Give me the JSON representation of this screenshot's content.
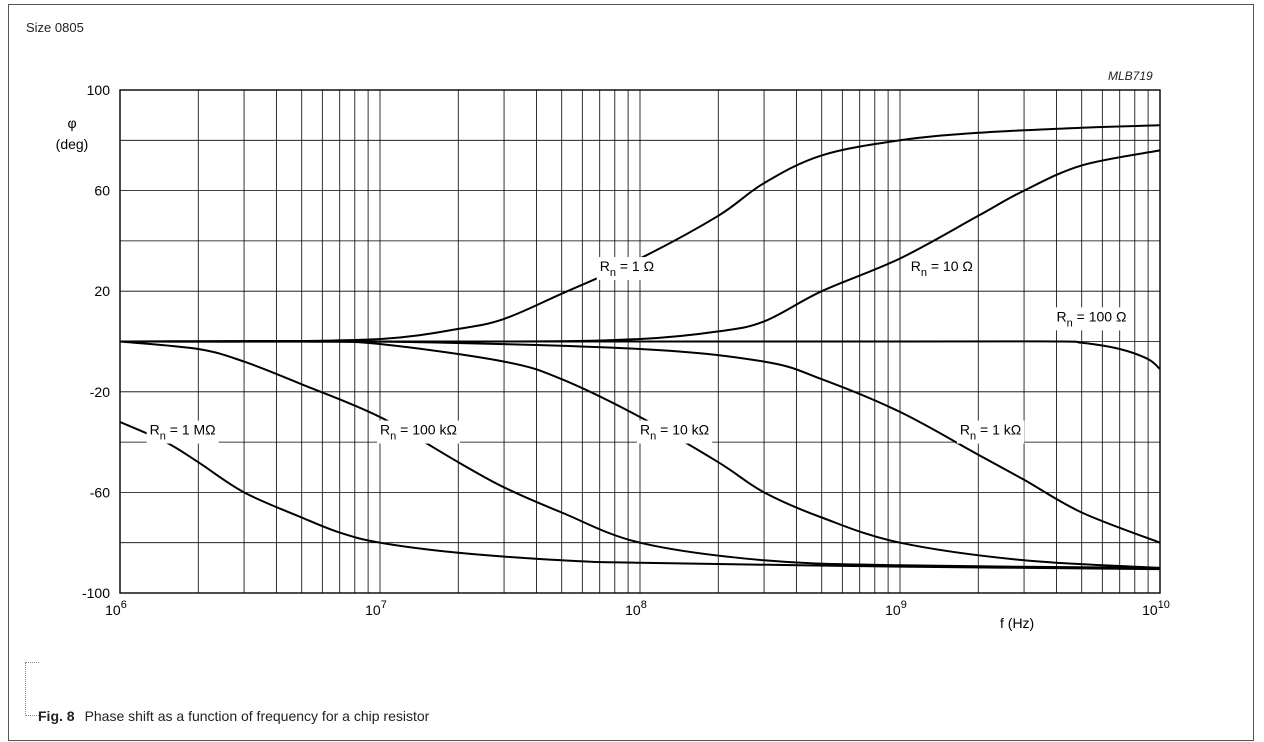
{
  "header": {
    "size_label": "Size 0805",
    "code": "MLB719"
  },
  "caption": {
    "fig": "Fig. 8",
    "text": "Phase shift as a function of frequency for a chip resistor"
  },
  "chart_data": {
    "type": "line",
    "xlabel": "f  (Hz)",
    "ylabel_symbol": "φ",
    "ylabel_unit": "(deg)",
    "x_scale": "log",
    "xlim": [
      1000000,
      10000000000
    ],
    "ylim": [
      -100,
      100
    ],
    "x_ticks": [
      {
        "value": 1000000,
        "base": "10",
        "exp": "6"
      },
      {
        "value": 10000000,
        "base": "10",
        "exp": "7"
      },
      {
        "value": 100000000,
        "base": "10",
        "exp": "8"
      },
      {
        "value": 1000000000,
        "base": "10",
        "exp": "9"
      },
      {
        "value": 10000000000,
        "base": "10",
        "exp": "10"
      }
    ],
    "y_ticks": [
      {
        "value": 100,
        "label": "100"
      },
      {
        "value": 60,
        "label": "60"
      },
      {
        "value": 20,
        "label": "20"
      },
      {
        "value": -20,
        "label": "-20"
      },
      {
        "value": -60,
        "label": "-60"
      },
      {
        "value": -100,
        "label": "-100"
      }
    ],
    "y_grid_step": 20,
    "grid": true,
    "series": [
      {
        "name": "Rn = 1 Ω",
        "label_main": "R",
        "label_sub": "n",
        "label_rest": " = 1 Ω",
        "label_at": [
          70000000,
          28
        ],
        "points": [
          [
            1000000,
            0
          ],
          [
            3000000,
            0
          ],
          [
            10000000,
            1
          ],
          [
            20000000,
            5
          ],
          [
            30000000,
            9
          ],
          [
            50000000,
            19
          ],
          [
            100000000,
            33
          ],
          [
            200000000,
            50
          ],
          [
            300000000,
            63
          ],
          [
            500000000,
            74
          ],
          [
            1000000000,
            80
          ],
          [
            2000000000,
            83
          ],
          [
            5000000000,
            85
          ],
          [
            10000000000,
            86
          ]
        ]
      },
      {
        "name": "Rn = 10 Ω",
        "label_main": "R",
        "label_sub": "n",
        "label_rest": " = 10 Ω",
        "label_at": [
          1100000000,
          28
        ],
        "points": [
          [
            1000000,
            0
          ],
          [
            30000000,
            0
          ],
          [
            100000000,
            1
          ],
          [
            200000000,
            4
          ],
          [
            300000000,
            8
          ],
          [
            500000000,
            20
          ],
          [
            1000000000,
            33
          ],
          [
            2000000000,
            50
          ],
          [
            3000000000,
            60
          ],
          [
            5000000000,
            70
          ],
          [
            10000000000,
            76
          ]
        ]
      },
      {
        "name": "Rn = 100 Ω",
        "label_main": "R",
        "label_sub": "n",
        "label_rest": " = 100 Ω",
        "label_at": [
          4000000000,
          8
        ],
        "points": [
          [
            1000000,
            0
          ],
          [
            1000000000,
            0
          ],
          [
            4000000000,
            0
          ],
          [
            5000000000,
            -0.5
          ],
          [
            7000000000,
            -3
          ],
          [
            9000000000,
            -7
          ],
          [
            10000000000,
            -11
          ]
        ]
      },
      {
        "name": "Rn = 1 kΩ",
        "label_main": "R",
        "label_sub": "n",
        "label_rest": " = 1 kΩ",
        "label_at": [
          1700000000,
          -37
        ],
        "points": [
          [
            1000000,
            0
          ],
          [
            10000000,
            0
          ],
          [
            100000000,
            -3
          ],
          [
            300000000,
            -8
          ],
          [
            500000000,
            -15
          ],
          [
            1000000000,
            -28
          ],
          [
            2000000000,
            -45
          ],
          [
            3000000000,
            -55
          ],
          [
            5000000000,
            -68
          ],
          [
            10000000000,
            -80
          ]
        ]
      },
      {
        "name": "Rn = 10 kΩ",
        "label_main": "R",
        "label_sub": "n",
        "label_rest": " = 10 kΩ",
        "label_at": [
          100000000,
          -37
        ],
        "points": [
          [
            1000000,
            0
          ],
          [
            5000000,
            0
          ],
          [
            10000000,
            -1
          ],
          [
            30000000,
            -8
          ],
          [
            50000000,
            -15
          ],
          [
            100000000,
            -30
          ],
          [
            200000000,
            -48
          ],
          [
            300000000,
            -60
          ],
          [
            500000000,
            -70
          ],
          [
            1000000000,
            -80
          ],
          [
            3000000000,
            -87
          ],
          [
            10000000000,
            -90
          ]
        ]
      },
      {
        "name": "Rn = 100 kΩ",
        "label_main": "R",
        "label_sub": "n",
        "label_rest": " = 100 kΩ",
        "label_at": [
          10000000,
          -37
        ],
        "points": [
          [
            1000000,
            0
          ],
          [
            2000000,
            -3
          ],
          [
            3000000,
            -8
          ],
          [
            5000000,
            -17
          ],
          [
            10000000,
            -30
          ],
          [
            20000000,
            -48
          ],
          [
            30000000,
            -58
          ],
          [
            50000000,
            -68
          ],
          [
            100000000,
            -80
          ],
          [
            300000000,
            -87
          ],
          [
            1000000000,
            -89
          ],
          [
            10000000000,
            -90
          ]
        ]
      },
      {
        "name": "Rn = 1 MΩ",
        "label_main": "R",
        "label_sub": "n",
        "label_rest": " = 1 MΩ",
        "label_at": [
          1300000,
          -37
        ],
        "points": [
          [
            1000000,
            -32
          ],
          [
            1500000,
            -40
          ],
          [
            2000000,
            -48
          ],
          [
            3000000,
            -60
          ],
          [
            5000000,
            -70
          ],
          [
            7000000,
            -76
          ],
          [
            10000000,
            -80
          ],
          [
            20000000,
            -84
          ],
          [
            50000000,
            -87
          ],
          [
            100000000,
            -88
          ],
          [
            1000000000,
            -89.5
          ],
          [
            10000000000,
            -90.5
          ]
        ]
      }
    ]
  }
}
